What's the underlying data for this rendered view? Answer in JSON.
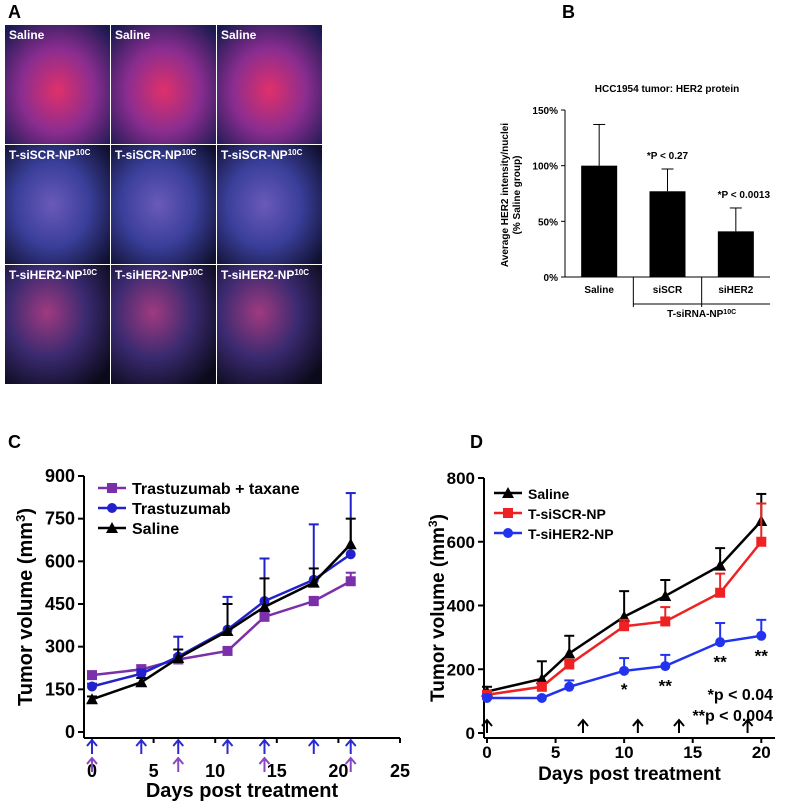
{
  "panel_labels": [
    "A",
    "B",
    "C",
    "D"
  ],
  "micrographs": [
    {
      "text": "Saline"
    },
    {
      "text": "Saline"
    },
    {
      "text": "Saline"
    },
    {
      "text": "T-siSCR-NP",
      "sup": "10C"
    },
    {
      "text": "T-siSCR-NP",
      "sup": "10C"
    },
    {
      "text": "T-siSCR-NP",
      "sup": "10C"
    },
    {
      "text": "T-siHER2-NP",
      "sup": "10C"
    },
    {
      "text": "T-siHER2-NP",
      "sup": "10C"
    },
    {
      "text": "T-siHER2-NP",
      "sup": "10C"
    }
  ],
  "chart_data": [
    {
      "type": "bar",
      "title": "HCC1954 tumor: HER2 protein",
      "y_label": [
        "Average HER2 intensity/nuclei",
        "(% Saline group)"
      ],
      "categories": [
        "Saline",
        "siSCR",
        "siHER2"
      ],
      "values": [
        100,
        77,
        41
      ],
      "errors": [
        37,
        20,
        21
      ],
      "color": "#000000",
      "ylim": [
        0,
        150
      ],
      "yticks": [
        {
          "value": 0,
          "label": "0%"
        },
        {
          "value": 50,
          "label": "50%"
        },
        {
          "value": 100,
          "label": "100%"
        },
        {
          "value": 150,
          "label": "150%"
        }
      ],
      "annotations": [
        "*P < 0.27",
        "*P < 0.0013"
      ],
      "group_label": {
        "text": "T-siRNA-NP",
        "sup": "10C"
      }
    },
    {
      "type": "line",
      "y_label": {
        "text": "Tumor volume (mm",
        "sup": "3",
        "tail": ")"
      },
      "x_label": "Days post treatment",
      "x": [
        0,
        4,
        7,
        11,
        14,
        18,
        21
      ],
      "xlim": [
        0,
        25
      ],
      "xticks": [
        0,
        5,
        10,
        15,
        20,
        25
      ],
      "ylim": [
        0,
        900
      ],
      "yticks": [
        0,
        150,
        300,
        450,
        600,
        750,
        900
      ],
      "series": [
        {
          "name": "Trastuzumab + taxane",
          "color": "#7b2fa8",
          "marker": "square",
          "values": [
            200,
            220,
            255,
            285,
            405,
            460,
            530
          ],
          "errors": [
            10,
            15,
            15,
            10,
            15,
            15,
            30
          ]
        },
        {
          "name": "Trastuzumab",
          "color": "#2222cc",
          "marker": "circle",
          "values": [
            160,
            205,
            265,
            360,
            460,
            535,
            625
          ],
          "errors": [
            10,
            15,
            70,
            115,
            150,
            195,
            215
          ]
        },
        {
          "name": "Saline",
          "color": "#000000",
          "marker": "triangle",
          "values": [
            115,
            175,
            260,
            355,
            440,
            525,
            660
          ],
          "errors": [
            10,
            15,
            30,
            95,
            100,
            50,
            90
          ]
        }
      ],
      "dose_arrows": [
        {
          "color": "#2a2ad0",
          "x": [
            0,
            4,
            7,
            11,
            14,
            18,
            21
          ]
        },
        {
          "color": "#8a45c0",
          "x": [
            0,
            7,
            14,
            21
          ]
        }
      ]
    },
    {
      "type": "line",
      "y_label": {
        "text": "Tumor volume (mm",
        "sup": "3",
        "tail": ")"
      },
      "x_label": "Days post treatment",
      "x": [
        0,
        4,
        6,
        10,
        13,
        17,
        20
      ],
      "xlim": [
        0,
        21
      ],
      "xticks": [
        0,
        5,
        10,
        15,
        20
      ],
      "ylim": [
        0,
        800
      ],
      "yticks": [
        0,
        200,
        400,
        600,
        800
      ],
      "series": [
        {
          "name": "Saline",
          "color": "#000000",
          "marker": "triangle",
          "values": [
            130,
            170,
            250,
            365,
            430,
            525,
            665
          ],
          "errors": [
            15,
            55,
            55,
            80,
            50,
            55,
            85
          ]
        },
        {
          "name": "T-siSCR-NP",
          "color": "#ee2222",
          "marker": "square",
          "values": [
            120,
            145,
            215,
            335,
            350,
            440,
            600
          ],
          "errors": [
            10,
            10,
            15,
            20,
            45,
            60,
            120
          ]
        },
        {
          "name": "T-siHER2-NP",
          "color": "#2233ee",
          "marker": "circle",
          "values": [
            110,
            110,
            145,
            195,
            210,
            285,
            305
          ],
          "errors": [
            10,
            5,
            20,
            40,
            35,
            60,
            50
          ]
        }
      ],
      "stars": [
        {
          "text": "*",
          "x": 10,
          "y": 120
        },
        {
          "text": "**",
          "x": 13,
          "y": 130
        },
        {
          "text": "**",
          "x": 17,
          "y": 205
        },
        {
          "text": "**",
          "x": 20,
          "y": 225
        }
      ],
      "notes": [
        "*p < 0.04",
        "**p < 0.004"
      ],
      "dose_arrows": [
        {
          "color": "#000000",
          "x": [
            0,
            7,
            11,
            14,
            19
          ]
        }
      ]
    }
  ]
}
